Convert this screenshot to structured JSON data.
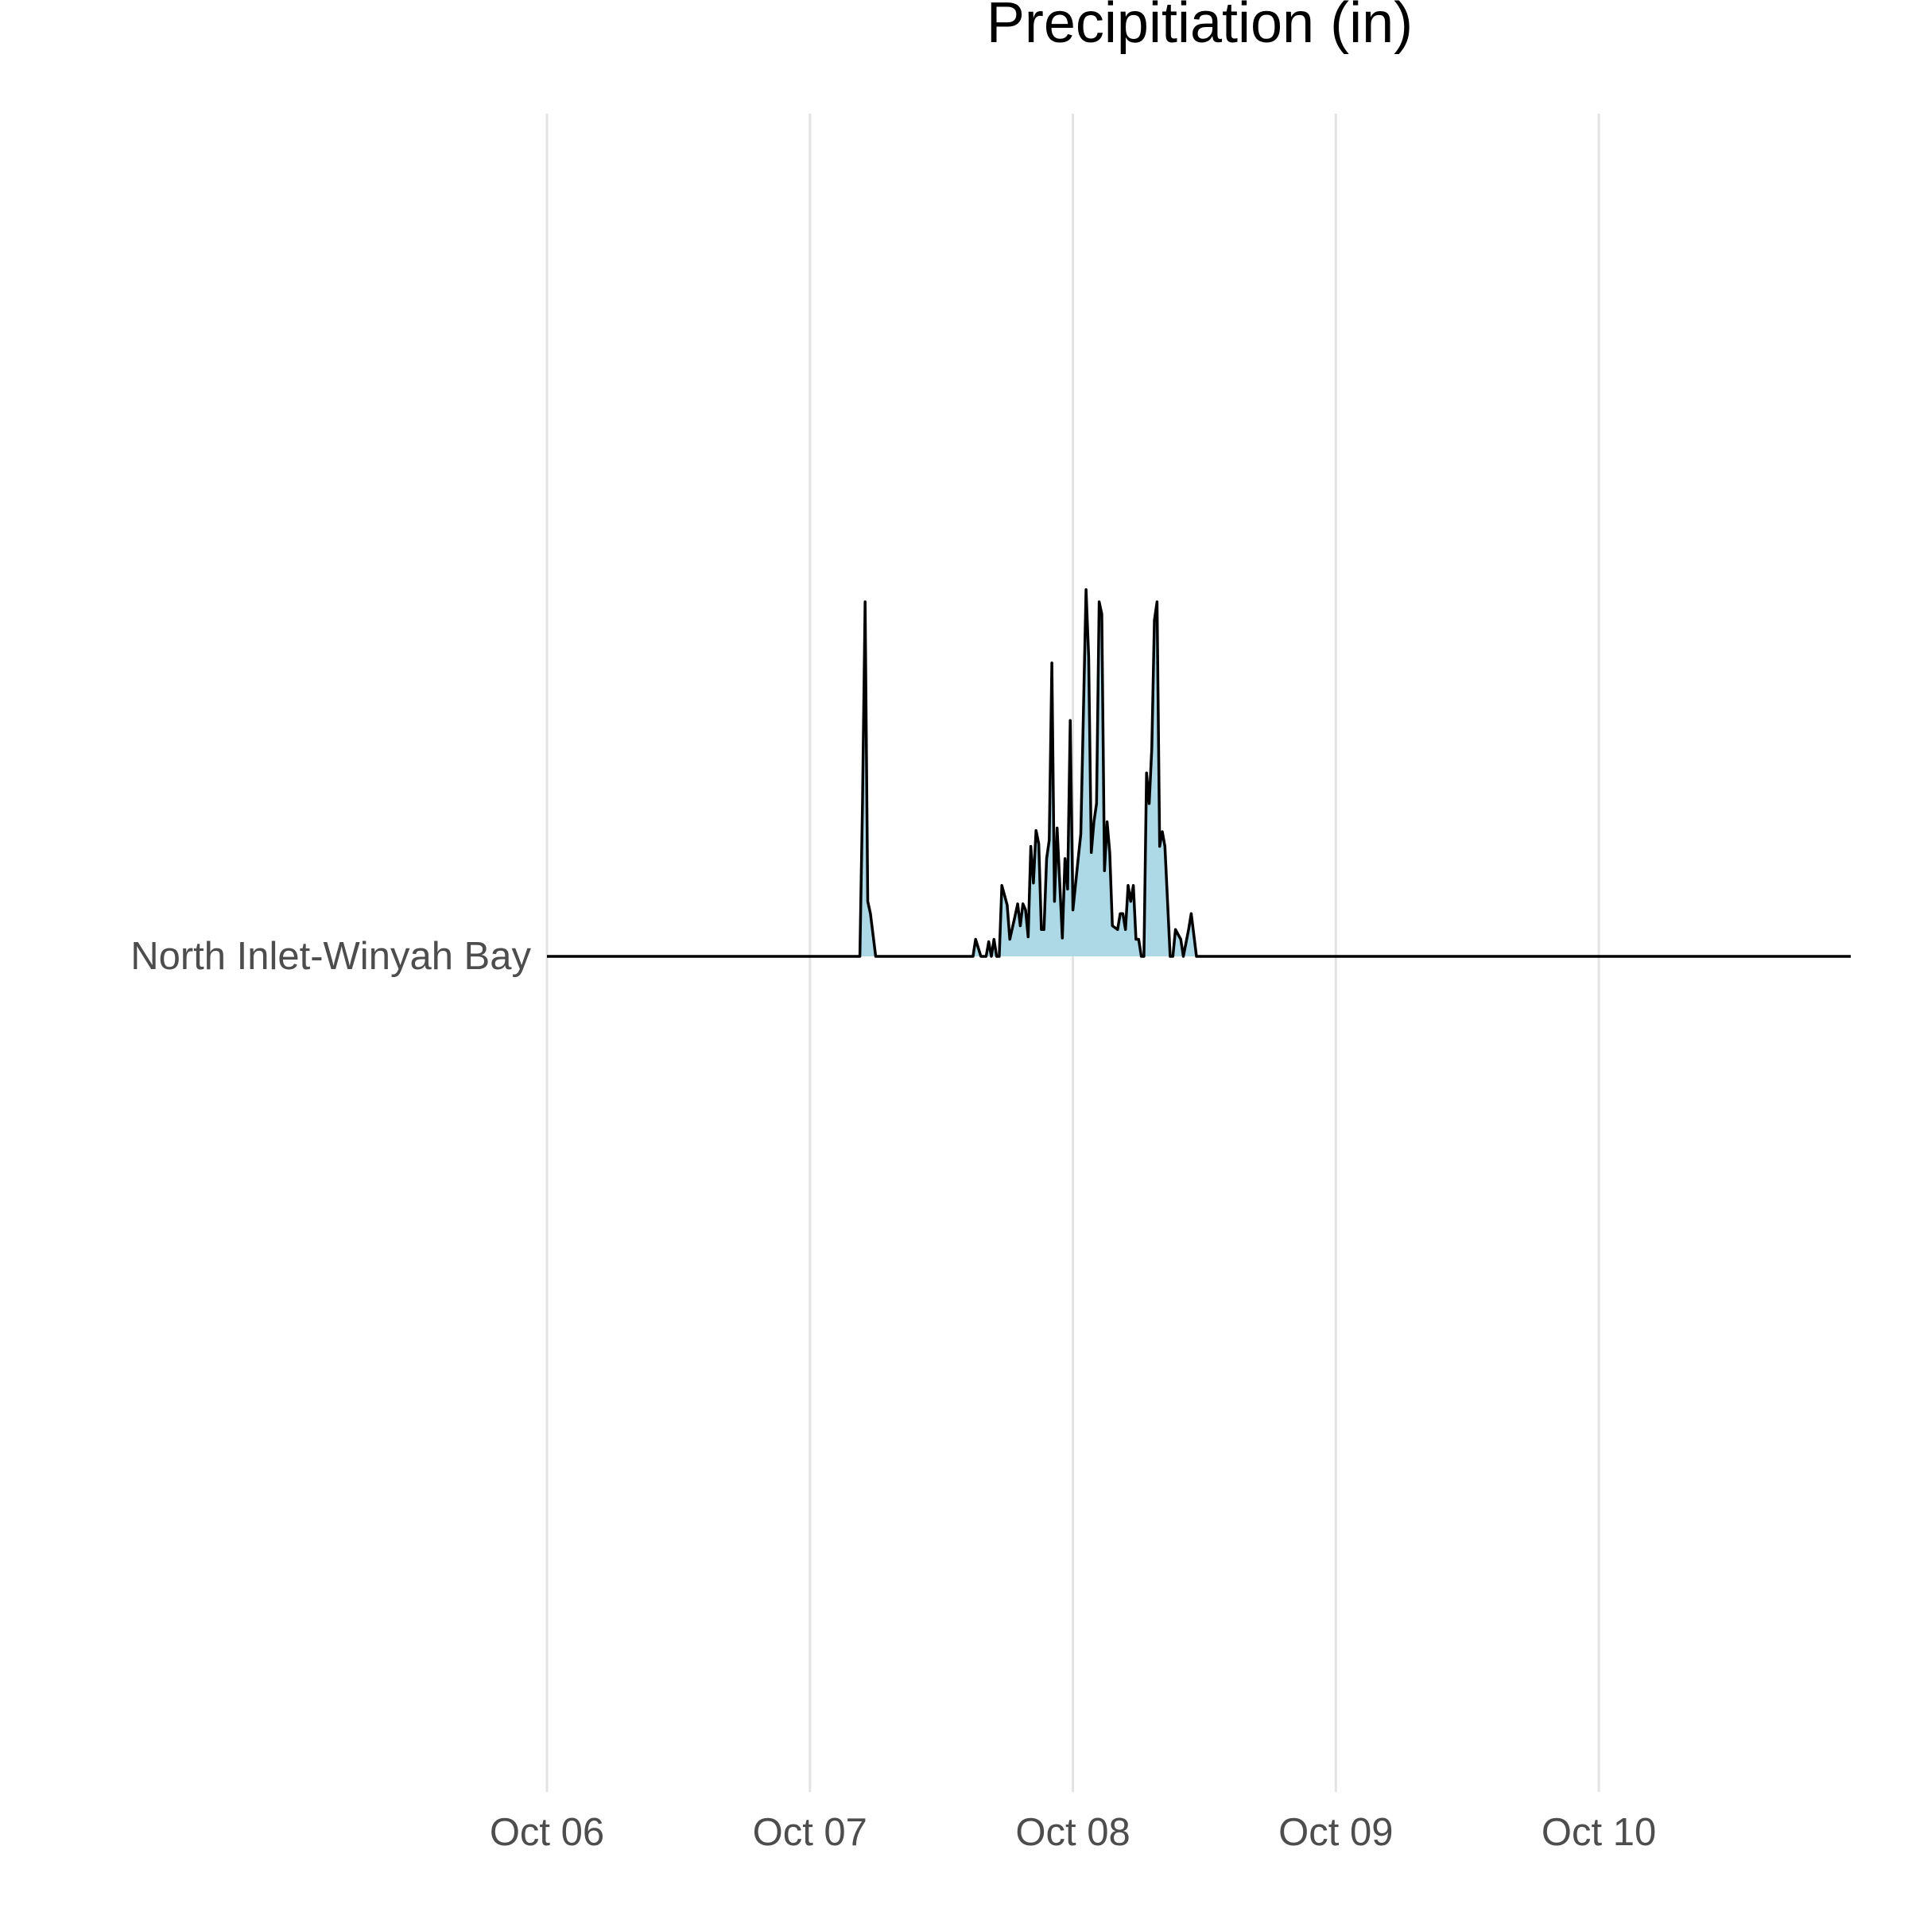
{
  "chart_data": {
    "type": "ridgeline",
    "title": "Precipitiation (in)",
    "x": [
      0,
      1.19,
      1.2,
      1.21,
      1.22,
      1.23,
      1.25,
      1.62,
      1.63,
      1.65,
      1.67,
      1.68,
      1.69,
      1.7,
      1.71,
      1.72,
      1.73,
      1.75,
      1.76,
      1.78,
      1.79,
      1.8,
      1.81,
      1.82,
      1.83,
      1.84,
      1.85,
      1.86,
      1.87,
      1.88,
      1.89,
      1.9,
      1.91,
      1.92,
      1.93,
      1.94,
      1.95,
      1.96,
      1.97,
      1.98,
      1.99,
      2.0,
      2.02,
      2.03,
      2.05,
      2.06,
      2.07,
      2.08,
      2.09,
      2.1,
      2.11,
      2.12,
      2.13,
      2.14,
      2.15,
      2.17,
      2.18,
      2.19,
      2.2,
      2.21,
      2.22,
      2.23,
      2.24,
      2.25,
      2.26,
      2.27,
      2.28,
      2.29,
      2.3,
      2.31,
      2.32,
      2.33,
      2.34,
      2.35,
      2.36,
      2.37,
      2.38,
      2.39,
      2.41,
      2.42,
      2.44,
      2.45,
      2.47,
      4.958
    ],
    "series": [
      {
        "name": "North Inlet-Winyah Bay",
        "color": "#add8e6",
        "values": [
          0,
          0,
          0.125,
          0.29,
          0.045,
          0.035,
          0,
          0,
          0.014,
          0,
          0,
          0.012,
          0,
          0.014,
          0,
          0,
          0.058,
          0.042,
          0.014,
          0.033,
          0.043,
          0.025,
          0.043,
          0.038,
          0.016,
          0.09,
          0.06,
          0.103,
          0.092,
          0.022,
          0.022,
          0.08,
          0.095,
          0.24,
          0.045,
          0.105,
          0.06,
          0.015,
          0.08,
          0.055,
          0.193,
          0.038,
          0.08,
          0.1,
          0.3,
          0.245,
          0.085,
          0.11,
          0.125,
          0.29,
          0.28,
          0.07,
          0.11,
          0.085,
          0.025,
          0.022,
          0.035,
          0.035,
          0.022,
          0.058,
          0.045,
          0.058,
          0.014,
          0.014,
          0,
          0,
          0.15,
          0.125,
          0.17,
          0.275,
          0.29,
          0.09,
          0.102,
          0.09,
          0.045,
          0,
          0,
          0.022,
          0.014,
          0,
          0.022,
          0.035,
          0,
          0
        ]
      }
    ],
    "xlim": [
      0,
      4.958
    ],
    "xticks": [
      {
        "value": 0,
        "label": "Oct 06"
      },
      {
        "value": 1,
        "label": "Oct 07"
      },
      {
        "value": 2,
        "label": "Oct 08"
      },
      {
        "value": 3,
        "label": "Oct 09"
      },
      {
        "value": 4,
        "label": "Oct 10"
      }
    ],
    "grid": true
  }
}
